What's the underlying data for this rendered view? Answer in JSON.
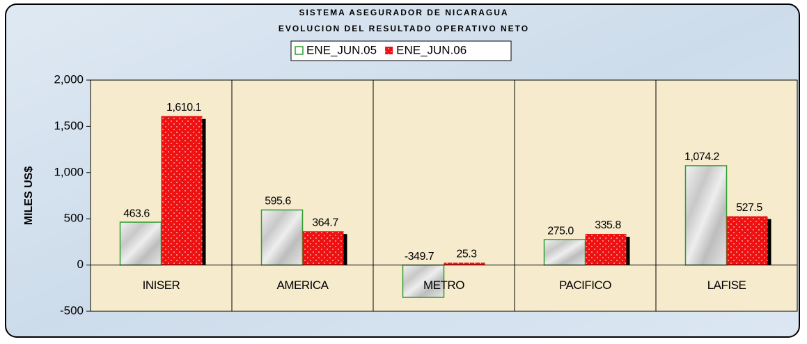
{
  "chart_data": {
    "type": "bar",
    "title": "SISTEMA ASEGURADOR DE NICARAGUA",
    "subtitle": "EVOLUCION DEL RESULTADO OPERATIVO NETO",
    "y_label": "MILES US$",
    "categories": [
      "INISER",
      "AMERICA",
      "METRO",
      "PACIFICO",
      "LAFISE"
    ],
    "series": [
      {
        "name": "ENE_JUN.05",
        "color": "#2e9e2e",
        "values": [
          463.6,
          595.6,
          -349.7,
          275.0,
          1074.2
        ],
        "value_labels": [
          "463.6",
          "595.6",
          "-349.7",
          "275.0",
          "1,074.2"
        ]
      },
      {
        "name": "ENE_JUN.06",
        "color": "#ee1111",
        "values": [
          1610.1,
          364.7,
          25.3,
          335.8,
          527.5
        ],
        "value_labels": [
          "1,610.1",
          "364.7",
          "25.3",
          "335.8",
          "527.5"
        ]
      }
    ],
    "ylim": [
      -500,
      2000
    ],
    "yticks": [
      -500,
      0,
      500,
      {
        "value": 1000,
        "label": "1,000"
      },
      {
        "value": 1500,
        "label": "1,500"
      },
      {
        "value": 2000,
        "label": "2,000"
      }
    ],
    "legend": "top"
  }
}
